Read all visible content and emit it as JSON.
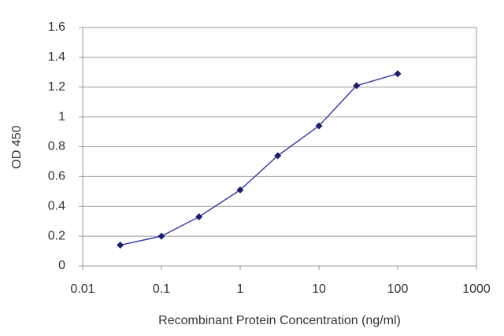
{
  "chart_data": {
    "type": "line",
    "x_label": "Recombinant Protein Concentration (ng/ml)",
    "y_label": "OD 450",
    "x": [
      0.03,
      0.1,
      0.3,
      1,
      3,
      10,
      30,
      100
    ],
    "series": [
      {
        "color": "#3b3fa8",
        "values": [
          0.14,
          0.2,
          0.33,
          0.51,
          0.74,
          0.94,
          1.21,
          1.29
        ]
      }
    ],
    "xlim": [
      0.01,
      1000
    ],
    "xticks": [
      0.01,
      0.1,
      1,
      10,
      100,
      1000
    ],
    "xscale": "log",
    "ylim": [
      0,
      1.6
    ],
    "yticks": [
      0,
      0.2,
      0.4,
      0.6,
      0.8,
      1,
      1.2,
      1.4,
      1.6
    ],
    "grid": true,
    "marker_color": "#1a1f6e"
  }
}
